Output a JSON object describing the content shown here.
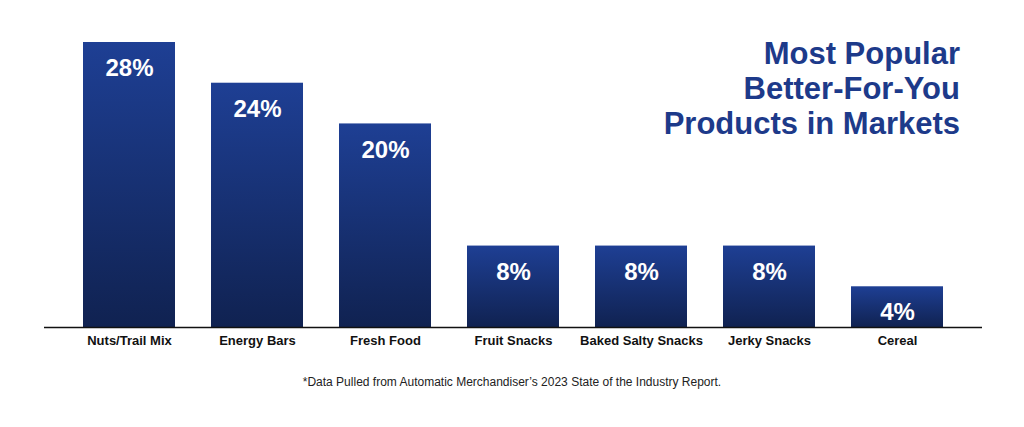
{
  "chart_data": {
    "type": "bar",
    "title": "Most Popular Better-For-You Products in Markets",
    "caption": "*Data Pulled from Automatic Merchandiser’s 2023 State of the Industry Report.",
    "categories": [
      "Nuts/Trail Mix",
      "Energy Bars",
      "Fresh Food",
      "Fruit Snacks",
      "Baked Salty Snacks",
      "Jerky Snacks",
      "Cereal"
    ],
    "values": [
      28,
      24,
      20,
      8,
      8,
      8,
      4
    ],
    "value_labels": [
      "28%",
      "24%",
      "20%",
      "8%",
      "8%",
      "8%",
      "4%"
    ],
    "color": "#1e3f94",
    "ylim": [
      0,
      28
    ],
    "grid": false,
    "data_labels": true,
    "tick_labels": "x"
  }
}
